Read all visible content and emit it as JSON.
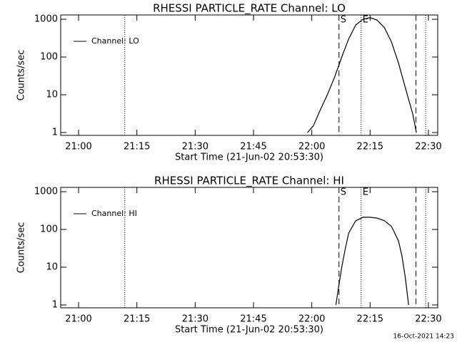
{
  "chart_data": [
    {
      "type": "line",
      "title": "RHESSI PARTICLE_RATE Channel: LO",
      "xlabel": "Start Time (21-Jun-02 20:53:30)",
      "ylabel": "Counts/sec",
      "log_y": true,
      "legend": "upper left",
      "xlim": [
        1255.4,
        1352.4
      ],
      "ylim": [
        0.84,
        1300
      ],
      "xticks": [
        {
          "value": 1260,
          "label": "21:00"
        },
        {
          "value": 1275,
          "label": "21:15"
        },
        {
          "value": 1290,
          "label": "21:30"
        },
        {
          "value": 1305,
          "label": "21:45"
        },
        {
          "value": 1320,
          "label": "22:00"
        },
        {
          "value": 1335,
          "label": "22:15"
        },
        {
          "value": 1350,
          "label": "22:30"
        }
      ],
      "yticks": [
        1,
        10,
        100,
        1000
      ],
      "markers": [
        {
          "x": 1271.9,
          "style": "dotted"
        },
        {
          "x": 1327.0,
          "style": "dashed",
          "label": "S"
        },
        {
          "x": 1332.7,
          "style": "dotted",
          "label": "E"
        },
        {
          "x": 1346.8,
          "style": "dashed"
        },
        {
          "x": 1349.3,
          "style": "dotted"
        }
      ],
      "series": [
        {
          "name": "Channel: LO",
          "color": "#000000",
          "x": [
            1318.9,
            1320.4,
            1322.2,
            1324.0,
            1325.9,
            1327.7,
            1329.5,
            1331.3,
            1333.2,
            1335.0,
            1336.8,
            1338.7,
            1340.5,
            1342.3,
            1344.1,
            1346.0,
            1346.9
          ],
          "values": [
            1,
            1.5,
            4,
            10,
            30,
            100,
            300,
            700,
            1000,
            1100,
            950,
            600,
            250,
            70,
            15,
            3,
            1
          ]
        }
      ]
    },
    {
      "type": "line",
      "title": "RHESSI PARTICLE_RATE Channel: HI",
      "xlabel": "Start Time (21-Jun-02 20:53:30)",
      "ylabel": "Counts/sec",
      "log_y": true,
      "legend": "upper left",
      "xlim": [
        1255.4,
        1352.4
      ],
      "ylim": [
        0.84,
        1300
      ],
      "xticks": [
        {
          "value": 1260,
          "label": "21:00"
        },
        {
          "value": 1275,
          "label": "21:15"
        },
        {
          "value": 1290,
          "label": "21:30"
        },
        {
          "value": 1305,
          "label": "21:45"
        },
        {
          "value": 1320,
          "label": "22:00"
        },
        {
          "value": 1335,
          "label": "22:15"
        },
        {
          "value": 1350,
          "label": "22:30"
        }
      ],
      "yticks": [
        1,
        10,
        100,
        1000
      ],
      "markers": [
        {
          "x": 1271.9,
          "style": "dotted"
        },
        {
          "x": 1327.0,
          "style": "dashed",
          "label": "S"
        },
        {
          "x": 1332.7,
          "style": "dotted",
          "label": "E"
        },
        {
          "x": 1346.8,
          "style": "dashed"
        },
        {
          "x": 1349.3,
          "style": "dotted"
        }
      ],
      "series": [
        {
          "name": "Channel: HI",
          "color": "#000000",
          "x": [
            1326.2,
            1326.9,
            1327.7,
            1328.6,
            1329.5,
            1331.3,
            1333.2,
            1335.0,
            1336.8,
            1338.7,
            1340.5,
            1342.3,
            1343.2,
            1344.1,
            1344.9
          ],
          "values": [
            1,
            3,
            10,
            30,
            80,
            170,
            210,
            210,
            200,
            170,
            120,
            50,
            20,
            5,
            1
          ]
        }
      ]
    }
  ],
  "footer": "16-Oct-2021 14:23"
}
